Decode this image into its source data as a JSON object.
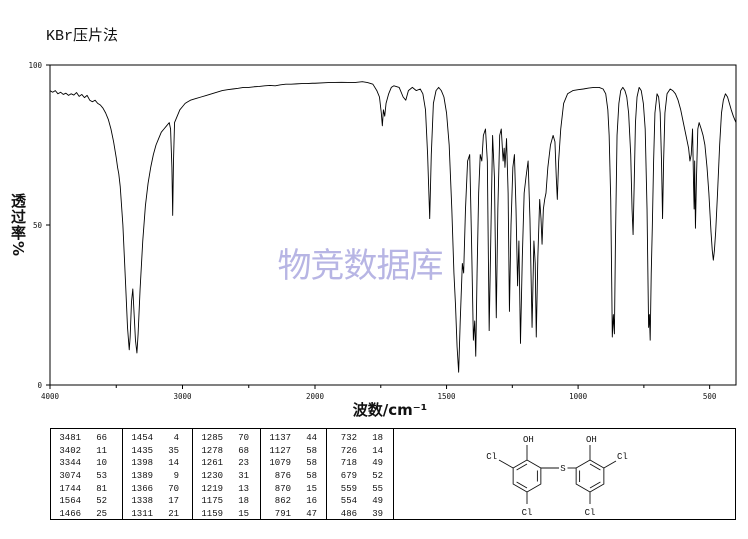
{
  "title": "KBr压片法",
  "watermark": "物竞数据库",
  "colors": {
    "spectrum_line": "#000000",
    "watermark": "#b7b5e4"
  },
  "chart_data": {
    "type": "line",
    "xlabel": "波数/cm⁻¹",
    "ylabel": "透过率%",
    "xlim": [
      4000,
      400
    ],
    "ylim": [
      0,
      100
    ],
    "x_ticks": [
      4000,
      3000,
      2000,
      1500,
      1000,
      500
    ],
    "y_ticks": [
      100,
      50,
      0
    ],
    "grid": false,
    "series": [
      {
        "points": [
          [
            4000,
            92
          ],
          [
            3980,
            91.5
          ],
          [
            3960,
            92
          ],
          [
            3940,
            91
          ],
          [
            3920,
            91.5
          ],
          [
            3900,
            90.8
          ],
          [
            3880,
            91.2
          ],
          [
            3860,
            90.5
          ],
          [
            3840,
            91
          ],
          [
            3820,
            90.6
          ],
          [
            3800,
            91.4
          ],
          [
            3780,
            90.2
          ],
          [
            3760,
            90.8
          ],
          [
            3740,
            89.8
          ],
          [
            3720,
            90.5
          ],
          [
            3700,
            89
          ],
          [
            3680,
            88.5
          ],
          [
            3660,
            89
          ],
          [
            3640,
            88
          ],
          [
            3620,
            87.5
          ],
          [
            3600,
            86.5
          ],
          [
            3580,
            85
          ],
          [
            3560,
            83
          ],
          [
            3540,
            80
          ],
          [
            3520,
            76
          ],
          [
            3500,
            71
          ],
          [
            3490,
            68
          ],
          [
            3481,
            66
          ],
          [
            3470,
            62
          ],
          [
            3450,
            50
          ],
          [
            3430,
            32
          ],
          [
            3415,
            18
          ],
          [
            3402,
            11
          ],
          [
            3395,
            15
          ],
          [
            3385,
            26
          ],
          [
            3375,
            30
          ],
          [
            3365,
            22
          ],
          [
            3355,
            14
          ],
          [
            3344,
            10
          ],
          [
            3335,
            16
          ],
          [
            3320,
            30
          ],
          [
            3300,
            45
          ],
          [
            3280,
            56
          ],
          [
            3260,
            63
          ],
          [
            3240,
            68
          ],
          [
            3220,
            72
          ],
          [
            3200,
            75
          ],
          [
            3180,
            77
          ],
          [
            3160,
            79
          ],
          [
            3140,
            80
          ],
          [
            3120,
            81
          ],
          [
            3100,
            82
          ],
          [
            3090,
            80
          ],
          [
            3080,
            68
          ],
          [
            3074,
            53
          ],
          [
            3068,
            70
          ],
          [
            3060,
            82
          ],
          [
            3040,
            84
          ],
          [
            3020,
            86
          ],
          [
            3000,
            87
          ],
          [
            2980,
            88
          ],
          [
            2960,
            88.5
          ],
          [
            2940,
            89
          ],
          [
            2900,
            89.5
          ],
          [
            2860,
            90
          ],
          [
            2820,
            90.5
          ],
          [
            2780,
            91
          ],
          [
            2740,
            91.5
          ],
          [
            2700,
            92
          ],
          [
            2660,
            92.3
          ],
          [
            2620,
            92.5
          ],
          [
            2580,
            92.7
          ],
          [
            2540,
            93
          ],
          [
            2500,
            93
          ],
          [
            2460,
            93.2
          ],
          [
            2420,
            93.3
          ],
          [
            2380,
            93.5
          ],
          [
            2340,
            93.6
          ],
          [
            2300,
            93.5
          ],
          [
            2260,
            93.8
          ],
          [
            2220,
            94
          ],
          [
            2180,
            94
          ],
          [
            2140,
            94.1
          ],
          [
            2100,
            94.2
          ],
          [
            2060,
            94.2
          ],
          [
            2020,
            94.3
          ],
          [
            2000,
            94.3
          ],
          [
            1950,
            94.5
          ],
          [
            1900,
            94.6
          ],
          [
            1850,
            94.5
          ],
          [
            1820,
            94.8
          ],
          [
            1800,
            94.5
          ],
          [
            1780,
            94
          ],
          [
            1765,
            92
          ],
          [
            1755,
            90
          ],
          [
            1748,
            85
          ],
          [
            1744,
            81
          ],
          [
            1740,
            86
          ],
          [
            1735,
            84
          ],
          [
            1730,
            88
          ],
          [
            1720,
            91
          ],
          [
            1710,
            93
          ],
          [
            1700,
            93.5
          ],
          [
            1680,
            93
          ],
          [
            1665,
            90
          ],
          [
            1655,
            89
          ],
          [
            1645,
            92
          ],
          [
            1630,
            93
          ],
          [
            1615,
            92
          ],
          [
            1600,
            92.5
          ],
          [
            1590,
            91
          ],
          [
            1580,
            86
          ],
          [
            1572,
            72
          ],
          [
            1564,
            52
          ],
          [
            1558,
            72
          ],
          [
            1550,
            88
          ],
          [
            1540,
            92
          ],
          [
            1530,
            93
          ],
          [
            1520,
            92
          ],
          [
            1510,
            90
          ],
          [
            1500,
            85
          ],
          [
            1490,
            75
          ],
          [
            1480,
            55
          ],
          [
            1472,
            35
          ],
          [
            1466,
            25
          ],
          [
            1460,
            12
          ],
          [
            1454,
            4
          ],
          [
            1448,
            20
          ],
          [
            1440,
            38
          ],
          [
            1435,
            35
          ],
          [
            1428,
            55
          ],
          [
            1420,
            70
          ],
          [
            1412,
            72
          ],
          [
            1405,
            45
          ],
          [
            1398,
            14
          ],
          [
            1393,
            20
          ],
          [
            1389,
            9
          ],
          [
            1384,
            35
          ],
          [
            1378,
            60
          ],
          [
            1372,
            72
          ],
          [
            1366,
            70
          ],
          [
            1360,
            78
          ],
          [
            1352,
            80
          ],
          [
            1345,
            70
          ],
          [
            1338,
            17
          ],
          [
            1332,
            45
          ],
          [
            1325,
            78
          ],
          [
            1318,
            65
          ],
          [
            1311,
            21
          ],
          [
            1305,
            55
          ],
          [
            1298,
            78
          ],
          [
            1292,
            80
          ],
          [
            1285,
            70
          ],
          [
            1281,
            74
          ],
          [
            1278,
            68
          ],
          [
            1272,
            77
          ],
          [
            1266,
            60
          ],
          [
            1261,
            23
          ],
          [
            1255,
            50
          ],
          [
            1248,
            68
          ],
          [
            1242,
            72
          ],
          [
            1236,
            55
          ],
          [
            1230,
            31
          ],
          [
            1225,
            45
          ],
          [
            1219,
            13
          ],
          [
            1212,
            40
          ],
          [
            1205,
            60
          ],
          [
            1198,
            65
          ],
          [
            1190,
            70
          ],
          [
            1183,
            52
          ],
          [
            1175,
            18
          ],
          [
            1168,
            45
          ],
          [
            1163,
            38
          ],
          [
            1159,
            15
          ],
          [
            1153,
            40
          ],
          [
            1146,
            58
          ],
          [
            1141,
            52
          ],
          [
            1137,
            44
          ],
          [
            1132,
            55
          ],
          [
            1127,
            58
          ],
          [
            1122,
            60
          ],
          [
            1115,
            68
          ],
          [
            1105,
            75
          ],
          [
            1095,
            78
          ],
          [
            1088,
            76
          ],
          [
            1083,
            65
          ],
          [
            1079,
            58
          ],
          [
            1074,
            70
          ],
          [
            1066,
            80
          ],
          [
            1055,
            88
          ],
          [
            1040,
            91
          ],
          [
            1020,
            92
          ],
          [
            1000,
            92.3
          ],
          [
            980,
            92.5
          ],
          [
            960,
            92.8
          ],
          [
            940,
            93
          ],
          [
            920,
            93
          ],
          [
            905,
            92.5
          ],
          [
            895,
            91
          ],
          [
            887,
            86
          ],
          [
            882,
            78
          ],
          [
            876,
            58
          ],
          [
            872,
            30
          ],
          [
            870,
            15
          ],
          [
            866,
            22
          ],
          [
            862,
            16
          ],
          [
            858,
            45
          ],
          [
            852,
            78
          ],
          [
            845,
            88
          ],
          [
            838,
            92
          ],
          [
            830,
            93
          ],
          [
            822,
            92
          ],
          [
            815,
            90
          ],
          [
            808,
            85
          ],
          [
            800,
            72
          ],
          [
            795,
            55
          ],
          [
            791,
            47
          ],
          [
            787,
            62
          ],
          [
            782,
            82
          ],
          [
            776,
            90
          ],
          [
            768,
            93
          ],
          [
            760,
            92
          ],
          [
            752,
            88
          ],
          [
            745,
            80
          ],
          [
            738,
            55
          ],
          [
            732,
            18
          ],
          [
            729,
            22
          ],
          [
            726,
            14
          ],
          [
            722,
            35
          ],
          [
            718,
            49
          ],
          [
            713,
            70
          ],
          [
            708,
            85
          ],
          [
            700,
            91
          ],
          [
            694,
            90
          ],
          [
            688,
            85
          ],
          [
            683,
            70
          ],
          [
            679,
            52
          ],
          [
            675,
            70
          ],
          [
            670,
            85
          ],
          [
            662,
            91
          ],
          [
            650,
            92.5
          ],
          [
            640,
            92
          ],
          [
            630,
            91
          ],
          [
            620,
            89
          ],
          [
            610,
            86
          ],
          [
            600,
            82
          ],
          [
            590,
            78
          ],
          [
            580,
            74
          ],
          [
            575,
            70
          ],
          [
            570,
            72
          ],
          [
            565,
            80
          ],
          [
            561,
            62
          ],
          [
            559,
            55
          ],
          [
            557,
            70
          ],
          [
            554,
            49
          ],
          [
            550,
            65
          ],
          [
            545,
            80
          ],
          [
            540,
            82
          ],
          [
            532,
            80
          ],
          [
            525,
            78
          ],
          [
            518,
            75
          ],
          [
            510,
            68
          ],
          [
            503,
            60
          ],
          [
            495,
            48
          ],
          [
            490,
            42
          ],
          [
            486,
            39
          ],
          [
            482,
            42
          ],
          [
            477,
            48
          ],
          [
            470,
            60
          ],
          [
            462,
            75
          ],
          [
            455,
            85
          ],
          [
            448,
            89
          ],
          [
            440,
            91
          ],
          [
            432,
            90
          ],
          [
            425,
            88
          ],
          [
            418,
            86
          ],
          [
            410,
            84
          ],
          [
            400,
            82
          ]
        ]
      }
    ]
  },
  "peak_table": {
    "columns": [
      [
        {
          "wavenumber": 3481,
          "transmittance": 66
        },
        {
          "wavenumber": 3402,
          "transmittance": 11
        },
        {
          "wavenumber": 3344,
          "transmittance": 10
        },
        {
          "wavenumber": 3074,
          "transmittance": 53
        },
        {
          "wavenumber": 1744,
          "transmittance": 81
        },
        {
          "wavenumber": 1564,
          "transmittance": 52
        },
        {
          "wavenumber": 1466,
          "transmittance": 25
        }
      ],
      [
        {
          "wavenumber": 1454,
          "transmittance": 4
        },
        {
          "wavenumber": 1435,
          "transmittance": 35
        },
        {
          "wavenumber": 1398,
          "transmittance": 14
        },
        {
          "wavenumber": 1389,
          "transmittance": 9
        },
        {
          "wavenumber": 1366,
          "transmittance": 70
        },
        {
          "wavenumber": 1338,
          "transmittance": 17
        },
        {
          "wavenumber": 1311,
          "transmittance": 21
        }
      ],
      [
        {
          "wavenumber": 1285,
          "transmittance": 70
        },
        {
          "wavenumber": 1278,
          "transmittance": 68
        },
        {
          "wavenumber": 1261,
          "transmittance": 23
        },
        {
          "wavenumber": 1230,
          "transmittance": 31
        },
        {
          "wavenumber": 1219,
          "transmittance": 13
        },
        {
          "wavenumber": 1175,
          "transmittance": 18
        },
        {
          "wavenumber": 1159,
          "transmittance": 15
        }
      ],
      [
        {
          "wavenumber": 1137,
          "transmittance": 44
        },
        {
          "wavenumber": 1127,
          "transmittance": 58
        },
        {
          "wavenumber": 1079,
          "transmittance": 58
        },
        {
          "wavenumber": 876,
          "transmittance": 58
        },
        {
          "wavenumber": 870,
          "transmittance": 15
        },
        {
          "wavenumber": 862,
          "transmittance": 16
        },
        {
          "wavenumber": 791,
          "transmittance": 47
        }
      ],
      [
        {
          "wavenumber": 732,
          "transmittance": 18
        },
        {
          "wavenumber": 726,
          "transmittance": 14
        },
        {
          "wavenumber": 718,
          "transmittance": 49
        },
        {
          "wavenumber": 679,
          "transmittance": 52
        },
        {
          "wavenumber": 559,
          "transmittance": 55
        },
        {
          "wavenumber": 554,
          "transmittance": 49
        },
        {
          "wavenumber": 486,
          "transmittance": 39
        }
      ]
    ]
  },
  "structure": {
    "oh_left": "OH",
    "oh_right": "OH",
    "cl_upper_left": "Cl",
    "cl_lower_left": "Cl",
    "s": "S",
    "cl_upper_right": "Cl",
    "cl_lower_right": "Cl"
  }
}
